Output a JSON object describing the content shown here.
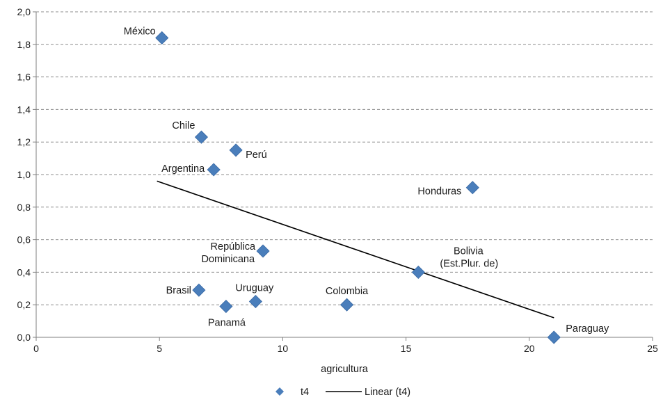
{
  "chart_data": {
    "type": "scatter",
    "xlabel": "agricultura",
    "ylabel": "",
    "xlim": [
      0,
      25
    ],
    "ylim": [
      0,
      2.0
    ],
    "x_ticks": [
      "0",
      "5",
      "10",
      "15",
      "20",
      "25"
    ],
    "y_ticks": [
      "0,0",
      "0,2",
      "0,4",
      "0,6",
      "0,8",
      "1,0",
      "1,2",
      "1,4",
      "1,6",
      "1,8",
      "2,0"
    ],
    "grid": "horizontal-dashed",
    "series": [
      {
        "name": "t4",
        "color": "#4a7ebb",
        "points": [
          {
            "label": "México",
            "x": 5.1,
            "y": 1.84
          },
          {
            "label": "Chile",
            "x": 6.7,
            "y": 1.23
          },
          {
            "label": "Perú",
            "x": 8.1,
            "y": 1.15
          },
          {
            "label": "Argentina",
            "x": 7.2,
            "y": 1.03
          },
          {
            "label": "Honduras",
            "x": 17.7,
            "y": 0.92
          },
          {
            "label": "República Dominicana",
            "x": 9.2,
            "y": 0.53
          },
          {
            "label": "Bolivia (Est.Plur. de)",
            "x": 15.5,
            "y": 0.4
          },
          {
            "label": "Brasil",
            "x": 6.6,
            "y": 0.29
          },
          {
            "label": "Uruguay",
            "x": 8.9,
            "y": 0.22
          },
          {
            "label": "Colombia",
            "x": 12.6,
            "y": 0.2
          },
          {
            "label": "Panamá",
            "x": 7.7,
            "y": 0.19
          },
          {
            "label": "Paraguay",
            "x": 21.0,
            "y": 0.0
          }
        ]
      }
    ],
    "trendline": {
      "name": "Linear (t4)",
      "color": "#000000",
      "x": [
        4.9,
        21.0
      ],
      "y": [
        0.96,
        0.12
      ]
    },
    "legend": {
      "position": "bottom",
      "entries": [
        "t4",
        "Linear (t4)"
      ]
    }
  }
}
